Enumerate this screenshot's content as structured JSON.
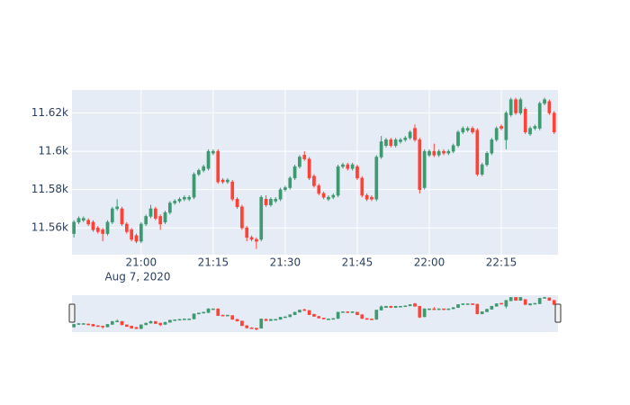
{
  "chart_data": {
    "type": "candlestick",
    "x": [
      "2020-08-07 20:46",
      "2020-08-07 20:47",
      "2020-08-07 20:48",
      "2020-08-07 20:49",
      "2020-08-07 20:50",
      "2020-08-07 20:51",
      "2020-08-07 20:52",
      "2020-08-07 20:53",
      "2020-08-07 20:54",
      "2020-08-07 20:55",
      "2020-08-07 20:56",
      "2020-08-07 20:57",
      "2020-08-07 20:58",
      "2020-08-07 20:59",
      "2020-08-07 21:00",
      "2020-08-07 21:01",
      "2020-08-07 21:02",
      "2020-08-07 21:03",
      "2020-08-07 21:04",
      "2020-08-07 21:05",
      "2020-08-07 21:06",
      "2020-08-07 21:07",
      "2020-08-07 21:08",
      "2020-08-07 21:09",
      "2020-08-07 21:10",
      "2020-08-07 21:11",
      "2020-08-07 21:12",
      "2020-08-07 21:13",
      "2020-08-07 21:14",
      "2020-08-07 21:15",
      "2020-08-07 21:16",
      "2020-08-07 21:17",
      "2020-08-07 21:18",
      "2020-08-07 21:19",
      "2020-08-07 21:20",
      "2020-08-07 21:21",
      "2020-08-07 21:22",
      "2020-08-07 21:23",
      "2020-08-07 21:24",
      "2020-08-07 21:25",
      "2020-08-07 21:26",
      "2020-08-07 21:27",
      "2020-08-07 21:28",
      "2020-08-07 21:29",
      "2020-08-07 21:30",
      "2020-08-07 21:31",
      "2020-08-07 21:32",
      "2020-08-07 21:33",
      "2020-08-07 21:34",
      "2020-08-07 21:35",
      "2020-08-07 21:36",
      "2020-08-07 21:37",
      "2020-08-07 21:38",
      "2020-08-07 21:39",
      "2020-08-07 21:40",
      "2020-08-07 21:41",
      "2020-08-07 21:42",
      "2020-08-07 21:43",
      "2020-08-07 21:44",
      "2020-08-07 21:45",
      "2020-08-07 21:46",
      "2020-08-07 21:47",
      "2020-08-07 21:48",
      "2020-08-07 21:49",
      "2020-08-07 21:50",
      "2020-08-07 21:51",
      "2020-08-07 21:52",
      "2020-08-07 21:53",
      "2020-08-07 21:54",
      "2020-08-07 21:55",
      "2020-08-07 21:56",
      "2020-08-07 21:57",
      "2020-08-07 21:58",
      "2020-08-07 21:59",
      "2020-08-07 22:00",
      "2020-08-07 22:01",
      "2020-08-07 22:02",
      "2020-08-07 22:03",
      "2020-08-07 22:04",
      "2020-08-07 22:05",
      "2020-08-07 22:06",
      "2020-08-07 22:07",
      "2020-08-07 22:08",
      "2020-08-07 22:09",
      "2020-08-07 22:10",
      "2020-08-07 22:11",
      "2020-08-07 22:12",
      "2020-08-07 22:13",
      "2020-08-07 22:14",
      "2020-08-07 22:15",
      "2020-08-07 22:16",
      "2020-08-07 22:17",
      "2020-08-07 22:18",
      "2020-08-07 22:19",
      "2020-08-07 22:20",
      "2020-08-07 22:21",
      "2020-08-07 22:22",
      "2020-08-07 22:23",
      "2020-08-07 22:24",
      "2020-08-07 22:25",
      "2020-08-07 22:26"
    ],
    "open": [
      11557,
      11563,
      11564,
      11564,
      11563,
      11560,
      11559,
      11557,
      11563,
      11570,
      11570,
      11562,
      11559,
      11556,
      11553,
      11562,
      11566,
      11570,
      11566,
      11563,
      11568,
      11573,
      11574,
      11575,
      11575,
      11576,
      11588,
      11590,
      11591,
      11599,
      11600,
      11585,
      11584,
      11584,
      11575,
      11571,
      11560,
      11555,
      11554,
      11554,
      11575,
      11572,
      11574,
      11575,
      11580,
      11581,
      11586,
      11592,
      11598,
      11596,
      11587,
      11582,
      11578,
      11575,
      11576,
      11577,
      11592,
      11593,
      11591,
      11592,
      11586,
      11577,
      11576,
      11575,
      11597,
      11603,
      11606,
      11603,
      11605,
      11606,
      11607,
      11612,
      11606,
      11581,
      11598,
      11600,
      11598,
      11600,
      11599,
      11600,
      11603,
      11610,
      11611,
      11612,
      11611,
      11588,
      11593,
      11599,
      11606,
      11613,
      11606,
      11619,
      11627,
      11620,
      11622,
      11609,
      11612,
      11612,
      11625,
      11626,
      11620
    ],
    "high": [
      11564,
      11566,
      11566,
      11565,
      11564,
      11561,
      11560,
      11564,
      11571,
      11575,
      11571,
      11563,
      11560,
      11557,
      11563,
      11567,
      11572,
      11571,
      11567,
      11569,
      11574,
      11575,
      11576,
      11577,
      11577,
      11589,
      11591,
      11593,
      11601,
      11601,
      11601,
      11586,
      11586,
      11585,
      11576,
      11572,
      11561,
      11556,
      11555,
      11577,
      11577,
      11576,
      11576,
      11581,
      11582,
      11587,
      11593,
      11598,
      11600,
      11597,
      11588,
      11583,
      11579,
      11577,
      11578,
      11593,
      11594,
      11594,
      11594,
      11593,
      11587,
      11578,
      11577,
      11598,
      11608,
      11607,
      11607,
      11607,
      11607,
      11608,
      11611,
      11614,
      11607,
      11601,
      11601,
      11604,
      11601,
      11601,
      11601,
      11604,
      11611,
      11613,
      11613,
      11613,
      11612,
      11594,
      11600,
      11607,
      11613,
      11614,
      11621,
      11628,
      11628,
      11628,
      11623,
      11613,
      11614,
      11626,
      11628,
      11627,
      11621
    ],
    "low": [
      11555,
      11562,
      11563,
      11561,
      11558,
      11557,
      11553,
      11556,
      11562,
      11569,
      11561,
      11557,
      11553,
      11552,
      11552,
      11561,
      11565,
      11564,
      11559,
      11562,
      11567,
      11572,
      11573,
      11574,
      11574,
      11575,
      11587,
      11589,
      11590,
      11598,
      11583,
      11583,
      11583,
      11574,
      11570,
      11559,
      11553,
      11553,
      11549,
      11553,
      11571,
      11571,
      11573,
      11574,
      11579,
      11580,
      11585,
      11591,
      11595,
      11585,
      11581,
      11577,
      11575,
      11574,
      11575,
      11576,
      11591,
      11590,
      11590,
      11585,
      11576,
      11574,
      11574,
      11574,
      11596,
      11602,
      11602,
      11602,
      11604,
      11605,
      11606,
      11605,
      11578,
      11580,
      11597,
      11597,
      11597,
      11598,
      11598,
      11599,
      11602,
      11609,
      11610,
      11609,
      11587,
      11587,
      11592,
      11598,
      11605,
      11611,
      11601,
      11618,
      11619,
      11619,
      11609,
      11608,
      11611,
      11611,
      11624,
      11619,
      11609
    ],
    "close": [
      11563,
      11565,
      11565,
      11562,
      11559,
      11558,
      11557,
      11563,
      11570,
      11571,
      11562,
      11558,
      11554,
      11553,
      11562,
      11566,
      11570,
      11565,
      11562,
      11568,
      11573,
      11574,
      11575,
      11576,
      11576,
      11588,
      11590,
      11592,
      11600,
      11600,
      11584,
      11584,
      11585,
      11575,
      11571,
      11560,
      11555,
      11554,
      11553,
      11576,
      11572,
      11575,
      11575,
      11580,
      11581,
      11586,
      11592,
      11597,
      11596,
      11586,
      11582,
      11578,
      11576,
      11576,
      11577,
      11592,
      11593,
      11591,
      11593,
      11586,
      11577,
      11575,
      11575,
      11597,
      11605,
      11606,
      11603,
      11606,
      11606,
      11607,
      11610,
      11606,
      11580,
      11600,
      11600,
      11598,
      11600,
      11599,
      11600,
      11603,
      11610,
      11612,
      11612,
      11610,
      11588,
      11593,
      11599,
      11606,
      11612,
      11612,
      11620,
      11627,
      11620,
      11627,
      11610,
      11612,
      11613,
      11625,
      11627,
      11620,
      11610
    ],
    "increasing_color": "#3d9970",
    "decreasing_color": "#ff4136",
    "xlim": [
      "2020-08-07 20:45:36",
      "2020-08-07 22:26:48"
    ],
    "xticks": [
      {
        "value": "2020-08-07 21:00",
        "label": "21:00"
      },
      {
        "value": "2020-08-07 21:15",
        "label": "21:15"
      },
      {
        "value": "2020-08-07 21:30",
        "label": "21:30"
      },
      {
        "value": "2020-08-07 21:45",
        "label": "21:45"
      },
      {
        "value": "2020-08-07 22:00",
        "label": "22:00"
      },
      {
        "value": "2020-08-07 22:15",
        "label": "22:15"
      }
    ],
    "x_date_label": "Aug 7, 2020",
    "ylim": [
      11546,
      11632
    ],
    "yticks": [
      {
        "value": 11560,
        "label": "11.56k"
      },
      {
        "value": 11580,
        "label": "11.58k"
      },
      {
        "value": 11600,
        "label": "11.6k"
      },
      {
        "value": 11620,
        "label": "11.62k"
      }
    ],
    "grid": true,
    "rangeslider": true
  }
}
